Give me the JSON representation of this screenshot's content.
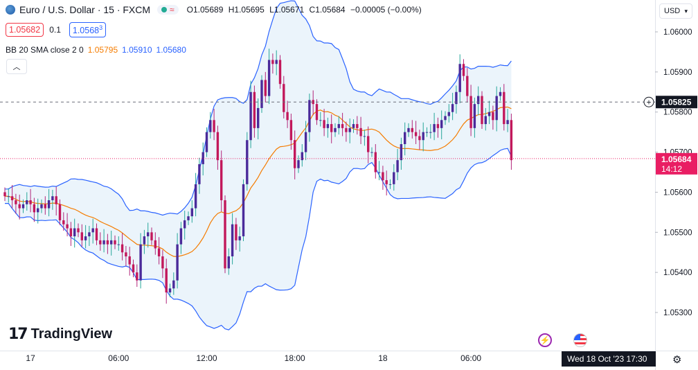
{
  "header": {
    "symbol": "Euro / U.S. Dollar · 15 · FXCM",
    "ohlc": {
      "o_label": "O",
      "o": "1.05689",
      "h_label": "H",
      "h": "1.05695",
      "l_label": "L",
      "l": "1.05671",
      "c_label": "C",
      "c": "1.05684",
      "change": "−0.00005 (−0.00%)"
    },
    "bid": "1.05682",
    "spread": "0.1",
    "ask_main": "1.0568",
    "ask_sup": "3"
  },
  "indicator": {
    "name": "BB 20 SMA close 2 0",
    "basis": "1.05795",
    "upper": "1.05910",
    "lower": "1.05680"
  },
  "currency": "USD",
  "brand": "TradingView",
  "crosshair_time": "Wed 18 Oct '23   17:30",
  "colors": {
    "up": "#26a69a",
    "down": "#b2257a",
    "up_body": "#4a2a9a",
    "down_body": "#c2185b",
    "basis": "#f57c00",
    "band": "#2962ff",
    "band_fill": "#e3effa",
    "last_price_bg": "#e91e63",
    "crosshair_bg": "#131722"
  },
  "chart_data": {
    "type": "candlestick",
    "title": "Euro / U.S. Dollar · 15 · FXCM",
    "ylim": [
      1.0525,
      1.0605
    ],
    "ytick_labels": [
      "1.06000",
      "1.05900",
      "1.05800",
      "1.05700",
      "1.05600",
      "1.05500",
      "1.05400",
      "1.05300"
    ],
    "ytick_values": [
      1.06,
      1.059,
      1.058,
      1.057,
      1.056,
      1.055,
      1.054,
      1.053
    ],
    "xtick_labels": [
      "17",
      "06:00",
      "12:00",
      "18:00",
      "18",
      "06:00"
    ],
    "xtick_bar_index": [
      7,
      31,
      55,
      79,
      103,
      127
    ],
    "crosshair_price": "1.05825",
    "crosshair_price_value": 1.05825,
    "last_price": "1.05684",
    "last_price_value": 1.05684,
    "countdown": "14:12",
    "close": [
      1.0559,
      1.0559,
      1.0558,
      1.0557,
      1.0556,
      1.0557,
      1.0558,
      1.0557,
      1.0555,
      1.0556,
      1.0557,
      1.0556,
      1.0558,
      1.0559,
      1.0557,
      1.0553,
      1.0552,
      1.0551,
      1.0549,
      1.0551,
      1.055,
      1.0548,
      1.0549,
      1.055,
      1.0551,
      1.0548,
      1.0547,
      1.0548,
      1.0547,
      1.0548,
      1.0547,
      1.0547,
      1.0545,
      1.0544,
      1.0542,
      1.054,
      1.0538,
      1.0547,
      1.0549,
      1.055,
      1.0548,
      1.0546,
      1.0544,
      1.0541,
      1.0535,
      1.0536,
      1.0538,
      1.0547,
      1.0551,
      1.0553,
      1.0554,
      1.0556,
      1.0562,
      1.0567,
      1.057,
      1.0575,
      1.0578,
      1.0575,
      1.0568,
      1.0558,
      1.0541,
      1.0544,
      1.0552,
      1.0548,
      1.0549,
      1.0562,
      1.0573,
      1.0585,
      1.0576,
      1.0581,
      1.0588,
      1.0584,
      1.0593,
      1.0592,
      1.0593,
      1.0587,
      1.058,
      1.0578,
      1.0573,
      1.0566,
      1.0568,
      1.057,
      1.0575,
      1.0583,
      1.0582,
      1.0578,
      1.0578,
      1.0576,
      1.0577,
      1.0575,
      1.0576,
      1.0577,
      1.0576,
      1.0575,
      1.0576,
      1.0577,
      1.0576,
      1.0574,
      1.0574,
      1.057,
      1.057,
      1.0565,
      1.0565,
      1.0563,
      1.0562,
      1.0562,
      1.0565,
      1.0568,
      1.0572,
      1.0575,
      1.0576,
      1.0575,
      1.0574,
      1.0573,
      1.0575,
      1.0575,
      1.0575,
      1.0577,
      1.0576,
      1.0578,
      1.0579,
      1.058,
      1.0582,
      1.0585,
      1.0592,
      1.0589,
      1.0584,
      1.0576,
      1.0582,
      1.0584,
      1.0577,
      1.0579,
      1.058,
      1.0578,
      1.0584,
      1.0585,
      1.0577,
      1.0578,
      1.0568
    ]
  }
}
